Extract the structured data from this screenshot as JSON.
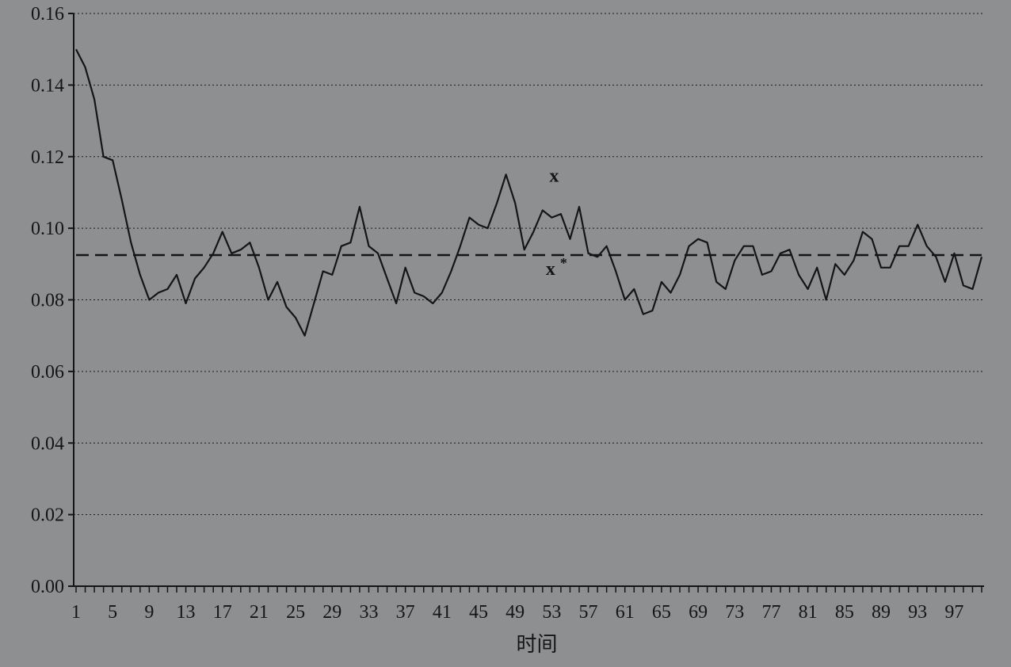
{
  "chart_data": {
    "type": "line",
    "title": "",
    "xlabel": "时间",
    "ylabel": "",
    "xlim": [
      1,
      100
    ],
    "ylim": [
      0,
      0.16
    ],
    "y_ticks": [
      "0.00",
      "0.02",
      "0.04",
      "0.06",
      "0.08",
      "0.10",
      "0.12",
      "0.14",
      "0.16"
    ],
    "x_ticks": [
      "1",
      "5",
      "9",
      "13",
      "17",
      "21",
      "25",
      "29",
      "33",
      "37",
      "41",
      "45",
      "49",
      "53",
      "57",
      "61",
      "65",
      "69",
      "73",
      "77",
      "81",
      "85",
      "89",
      "93",
      "97"
    ],
    "grid": "horizontal-dotted",
    "series": [
      {
        "name": "x",
        "style": "solid",
        "x": [
          1,
          2,
          3,
          4,
          5,
          6,
          7,
          8,
          9,
          10,
          11,
          12,
          13,
          14,
          15,
          16,
          17,
          18,
          19,
          20,
          21,
          22,
          23,
          24,
          25,
          26,
          27,
          28,
          29,
          30,
          31,
          32,
          33,
          34,
          35,
          36,
          37,
          38,
          39,
          40,
          41,
          42,
          43,
          44,
          45,
          46,
          47,
          48,
          49,
          50,
          51,
          52,
          53,
          54,
          55,
          56,
          57,
          58,
          59,
          60,
          61,
          62,
          63,
          64,
          65,
          66,
          67,
          68,
          69,
          70,
          71,
          72,
          73,
          74,
          75,
          76,
          77,
          78,
          79,
          80,
          81,
          82,
          83,
          84,
          85,
          86,
          87,
          88,
          89,
          90,
          91,
          92,
          93,
          94,
          95,
          96,
          97,
          98,
          99,
          100
        ],
        "values": [
          0.15,
          0.145,
          0.136,
          0.12,
          0.119,
          0.108,
          0.096,
          0.087,
          0.08,
          0.082,
          0.083,
          0.087,
          0.079,
          0.086,
          0.089,
          0.093,
          0.099,
          0.093,
          0.094,
          0.096,
          0.089,
          0.08,
          0.085,
          0.078,
          0.075,
          0.07,
          0.079,
          0.088,
          0.087,
          0.095,
          0.096,
          0.106,
          0.095,
          0.093,
          0.086,
          0.079,
          0.089,
          0.082,
          0.081,
          0.079,
          0.082,
          0.088,
          0.095,
          0.103,
          0.101,
          0.1,
          0.107,
          0.115,
          0.107,
          0.094,
          0.099,
          0.105,
          0.103,
          0.104,
          0.097,
          0.106,
          0.093,
          0.092,
          0.095,
          0.088,
          0.08,
          0.083,
          0.076,
          0.077,
          0.085,
          0.082,
          0.087,
          0.095,
          0.097,
          0.096,
          0.085,
          0.083,
          0.091,
          0.095,
          0.095,
          0.087,
          0.088,
          0.093,
          0.094,
          0.087,
          0.083,
          0.089,
          0.08,
          0.09,
          0.087,
          0.091,
          0.099,
          0.097,
          0.089,
          0.089,
          0.095,
          0.095,
          0.101,
          0.095,
          0.092,
          0.085,
          0.093,
          0.084,
          0.083,
          0.092
        ]
      },
      {
        "name": "x*",
        "style": "dashed",
        "value": 0.0925
      }
    ],
    "annotations": [
      {
        "text": "x",
        "x": 53,
        "y": 0.113
      },
      {
        "text": "x*",
        "x": 53,
        "y": 0.087
      }
    ]
  }
}
